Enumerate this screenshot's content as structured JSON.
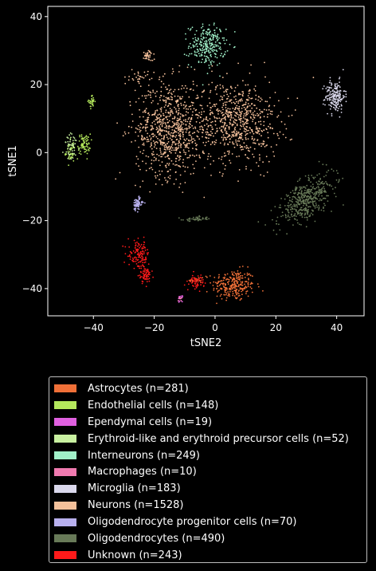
{
  "chart_data": {
    "type": "scatter",
    "xlabel": "tSNE2",
    "ylabel": "tSNE1",
    "xlim": [
      -55,
      49
    ],
    "ylim": [
      -48,
      43
    ],
    "xticks": [
      -40,
      -20,
      0,
      20,
      40
    ],
    "yticks": [
      -40,
      -20,
      0,
      20,
      40
    ],
    "grid": false,
    "legend_placement": "below",
    "background": "#000000",
    "series": [
      {
        "name": "Astrocytes (n=281)",
        "color": "#f07038",
        "clusters": [
          {
            "cx": 6,
            "cy": -39,
            "sx": 3.5,
            "sy": 2.3,
            "n": 260
          },
          {
            "cx": -6,
            "cy": -37.5,
            "sx": 1.2,
            "sy": 0.7,
            "n": 21
          }
        ]
      },
      {
        "name": "Endothelial cells (n=148)",
        "color": "#b4e85c",
        "clusters": [
          {
            "cx": -40.5,
            "cy": 15,
            "sx": 0.5,
            "sy": 0.9,
            "n": 30
          },
          {
            "cx": -43,
            "cy": 2.5,
            "sx": 1.0,
            "sy": 1.5,
            "n": 75
          },
          {
            "cx": -47.5,
            "cy": 0,
            "sx": 0.8,
            "sy": 1.6,
            "n": 43
          }
        ]
      },
      {
        "name": "Ependymal cells (n=19)",
        "color": "#e060e0",
        "clusters": [
          {
            "cx": -11.5,
            "cy": -43,
            "sx": 0.4,
            "sy": 0.4,
            "n": 19
          }
        ]
      },
      {
        "name": "Erythroid-like and erythroid precursor cells (n=52)",
        "color": "#c8f0a0",
        "clusters": [
          {
            "cx": -47,
            "cy": 1.5,
            "sx": 1.3,
            "sy": 2.0,
            "n": 52
          }
        ]
      },
      {
        "name": "Interneurons (n=249)",
        "color": "#a0f0c8",
        "clusters": [
          {
            "cx": -2.5,
            "cy": 31.5,
            "sx": 3.0,
            "sy": 3.0,
            "n": 249
          }
        ]
      },
      {
        "name": "Macrophages (n=10)",
        "color": "#f07ab0",
        "clusters": [
          {
            "cx": -11.5,
            "cy": -42.8,
            "sx": 0.3,
            "sy": 0.4,
            "n": 10
          }
        ]
      },
      {
        "name": "Microglia (n=183)",
        "color": "#dad8ec",
        "clusters": [
          {
            "cx": 39.5,
            "cy": 16.5,
            "sx": 1.6,
            "sy": 2.3,
            "n": 183
          }
        ]
      },
      {
        "name": "Neurons (n=1528)",
        "color": "#f4c09a",
        "clusters": [
          {
            "cx": -15,
            "cy": 7,
            "sx": 5.5,
            "sy": 7.0,
            "n": 760
          },
          {
            "cx": 7,
            "cy": 9,
            "sx": 7.0,
            "sy": 6.0,
            "n": 700
          },
          {
            "cx": -22,
            "cy": 28.5,
            "sx": 0.8,
            "sy": 0.8,
            "n": 40
          },
          {
            "cx": -25,
            "cy": 22,
            "sx": 1.5,
            "sy": 1.0,
            "n": 28
          }
        ]
      },
      {
        "name": "Oligodendrocyte progenitor cells (n=70)",
        "color": "#b8b0ee",
        "clusters": [
          {
            "cx": -25.5,
            "cy": -15,
            "sx": 0.8,
            "sy": 1.0,
            "n": 70
          }
        ]
      },
      {
        "name": "Oligodendrocytes (n=490)",
        "color": "#687a58",
        "clusters": [
          {
            "cx": 30,
            "cy": -14,
            "sx": 5.5,
            "sy": 2.4,
            "tilt": 0.62,
            "n": 445
          },
          {
            "cx": -6,
            "cy": -19.5,
            "sx": 2.2,
            "sy": 0.3,
            "n": 45
          }
        ]
      },
      {
        "name": "Unknown (n=243)",
        "color": "#ff1a1a",
        "clusters": [
          {
            "cx": -25,
            "cy": -30,
            "sx": 1.8,
            "sy": 2.0,
            "n": 120
          },
          {
            "cx": -23,
            "cy": -36,
            "sx": 1.0,
            "sy": 1.3,
            "n": 65
          },
          {
            "cx": -6,
            "cy": -38,
            "sx": 1.2,
            "sy": 1.0,
            "n": 58
          }
        ]
      }
    ]
  }
}
